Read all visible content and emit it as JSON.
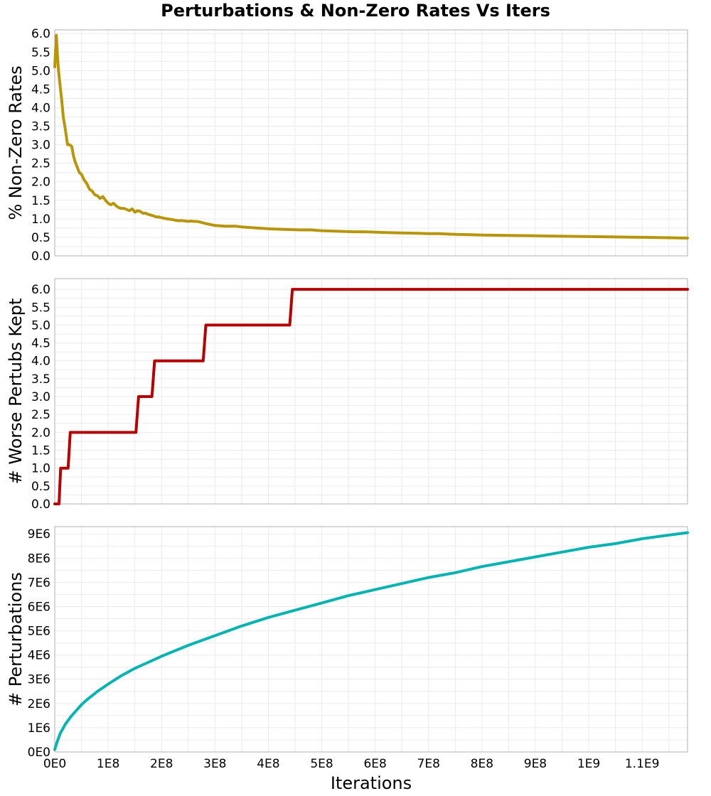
{
  "figure_title": "Perturbations & Non-Zero Rates Vs Iters",
  "chart_data": [
    {
      "type": "line",
      "ylabel": "% Non-Zero Rates",
      "xlim": [
        0,
        1185000000
      ],
      "ylim": [
        0,
        6.1
      ],
      "yticks": [
        0,
        0.5,
        1,
        1.5,
        2,
        2.5,
        3,
        3.5,
        4,
        4.5,
        5,
        5.5,
        6
      ],
      "ytick_labels": [
        "0.0",
        "0.5",
        "1.0",
        "1.5",
        "2.0",
        "2.5",
        "3.0",
        "3.5",
        "4.0",
        "4.5",
        "5.0",
        "5.5",
        "6.0"
      ],
      "grid": true,
      "color": "#b8960c",
      "series": [
        {
          "x": [
            0,
            3000000,
            5000000,
            7000000,
            10000000,
            13000000,
            16000000,
            20000000,
            24000000,
            28000000,
            32000000,
            35000000,
            38000000,
            42000000,
            46000000,
            50000000,
            55000000,
            60000000,
            65000000,
            70000000,
            75000000,
            80000000,
            85000000,
            90000000,
            95000000,
            100000000,
            105000000,
            110000000,
            115000000,
            120000000,
            125000000,
            130000000,
            135000000,
            140000000,
            145000000,
            150000000,
            155000000,
            160000000,
            165000000,
            170000000,
            175000000,
            180000000,
            185000000,
            190000000,
            195000000,
            200000000,
            210000000,
            220000000,
            230000000,
            240000000,
            250000000,
            255000000,
            260000000,
            265000000,
            270000000,
            280000000,
            290000000,
            300000000,
            310000000,
            320000000,
            330000000,
            340000000,
            350000000,
            360000000,
            370000000,
            380000000,
            400000000,
            420000000,
            440000000,
            460000000,
            480000000,
            500000000,
            520000000,
            540000000,
            560000000,
            580000000,
            600000000,
            620000000,
            650000000,
            680000000,
            700000000,
            720000000,
            750000000,
            780000000,
            800000000,
            850000000,
            900000000,
            950000000,
            1000000000,
            1050000000,
            1100000000,
            1150000000,
            1185000000
          ],
          "y": [
            5.1,
            5.95,
            5.4,
            5.0,
            4.6,
            4.2,
            3.75,
            3.4,
            3.0,
            3.0,
            2.95,
            2.7,
            2.55,
            2.4,
            2.25,
            2.2,
            2.05,
            1.95,
            1.8,
            1.75,
            1.65,
            1.62,
            1.55,
            1.6,
            1.5,
            1.42,
            1.38,
            1.42,
            1.35,
            1.3,
            1.28,
            1.28,
            1.25,
            1.22,
            1.27,
            1.18,
            1.22,
            1.2,
            1.15,
            1.15,
            1.12,
            1.1,
            1.08,
            1.05,
            1.05,
            1.03,
            1.0,
            0.98,
            0.95,
            0.95,
            0.93,
            0.94,
            0.93,
            0.93,
            0.92,
            0.88,
            0.85,
            0.82,
            0.81,
            0.8,
            0.8,
            0.8,
            0.78,
            0.77,
            0.76,
            0.75,
            0.73,
            0.72,
            0.71,
            0.7,
            0.7,
            0.68,
            0.67,
            0.66,
            0.65,
            0.65,
            0.64,
            0.63,
            0.62,
            0.61,
            0.6,
            0.6,
            0.58,
            0.57,
            0.56,
            0.55,
            0.54,
            0.53,
            0.52,
            0.51,
            0.5,
            0.49,
            0.48
          ]
        }
      ]
    },
    {
      "type": "line",
      "ylabel": "# Worse Pertubs Kept",
      "xlim": [
        0,
        1185000000
      ],
      "ylim": [
        0,
        6.3
      ],
      "yticks": [
        0,
        0.5,
        1,
        1.5,
        2,
        2.5,
        3,
        3.5,
        4,
        4.5,
        5,
        5.5,
        6
      ],
      "ytick_labels": [
        "0.0",
        "0.5",
        "1.0",
        "1.5",
        "2.0",
        "2.5",
        "3.0",
        "3.5",
        "4.0",
        "4.5",
        "5.0",
        "5.5",
        "6.0"
      ],
      "grid": true,
      "color": "#b30000",
      "series": [
        {
          "x": [
            0,
            8000000,
            11000000,
            25000000,
            29000000,
            152000000,
            157000000,
            182000000,
            187000000,
            278000000,
            283000000,
            440000000,
            445000000,
            1185000000
          ],
          "y": [
            0,
            0,
            1,
            1,
            2,
            2,
            3,
            3,
            4,
            4,
            5,
            5,
            6,
            6
          ]
        }
      ]
    },
    {
      "type": "line",
      "ylabel": "# Perturbations",
      "xlabel": "Iterations",
      "xlim": [
        0,
        1185000000
      ],
      "ylim": [
        0,
        9300000
      ],
      "yticks": [
        0,
        1000000,
        2000000,
        3000000,
        4000000,
        5000000,
        6000000,
        7000000,
        8000000,
        9000000
      ],
      "ytick_labels": [
        "0E0",
        "1E6",
        "2E6",
        "3E6",
        "4E6",
        "5E6",
        "6E6",
        "7E6",
        "8E6",
        "9E6"
      ],
      "xticks": [
        0,
        100000000,
        200000000,
        300000000,
        400000000,
        500000000,
        600000000,
        700000000,
        800000000,
        900000000,
        1000000000,
        1100000000
      ],
      "xtick_labels": [
        "0E0",
        "1E8",
        "2E8",
        "3E8",
        "4E8",
        "5E8",
        "6E8",
        "7E8",
        "8E8",
        "9E8",
        "1E9",
        "1.1E9"
      ],
      "grid": true,
      "color": "#0ab2b2",
      "series": [
        {
          "x": [
            0,
            2000000,
            5000000,
            10000000,
            20000000,
            30000000,
            40000000,
            50000000,
            60000000,
            80000000,
            100000000,
            125000000,
            150000000,
            175000000,
            200000000,
            250000000,
            300000000,
            350000000,
            400000000,
            450000000,
            500000000,
            550000000,
            600000000,
            650000000,
            700000000,
            750000000,
            800000000,
            850000000,
            900000000,
            950000000,
            1000000000,
            1050000000,
            1100000000,
            1150000000,
            1185000000
          ],
          "y": [
            100000,
            250000,
            450000,
            750000,
            1150000,
            1450000,
            1700000,
            1950000,
            2150000,
            2500000,
            2800000,
            3150000,
            3450000,
            3700000,
            3950000,
            4400000,
            4800000,
            5200000,
            5550000,
            5850000,
            6150000,
            6450000,
            6700000,
            6950000,
            7200000,
            7400000,
            7650000,
            7850000,
            8050000,
            8250000,
            8450000,
            8600000,
            8800000,
            8950000,
            9050000
          ]
        }
      ]
    }
  ]
}
